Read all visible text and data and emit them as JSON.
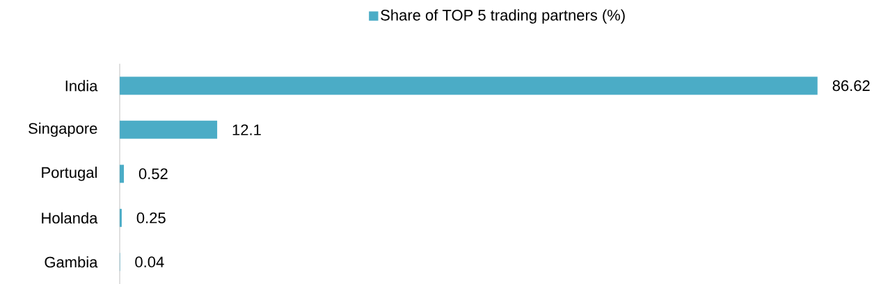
{
  "chart_data": {
    "type": "bar",
    "orientation": "horizontal",
    "categories": [
      "India",
      "Singapore",
      "Portugal",
      "Holanda",
      "Gambia"
    ],
    "series": [
      {
        "name": "Share of TOP 5 trading partners (%)",
        "color": "#4bacc6",
        "values": [
          86.62,
          12.1,
          0.52,
          0.25,
          0.04
        ]
      }
    ],
    "data_labels": true,
    "legend": "top"
  }
}
